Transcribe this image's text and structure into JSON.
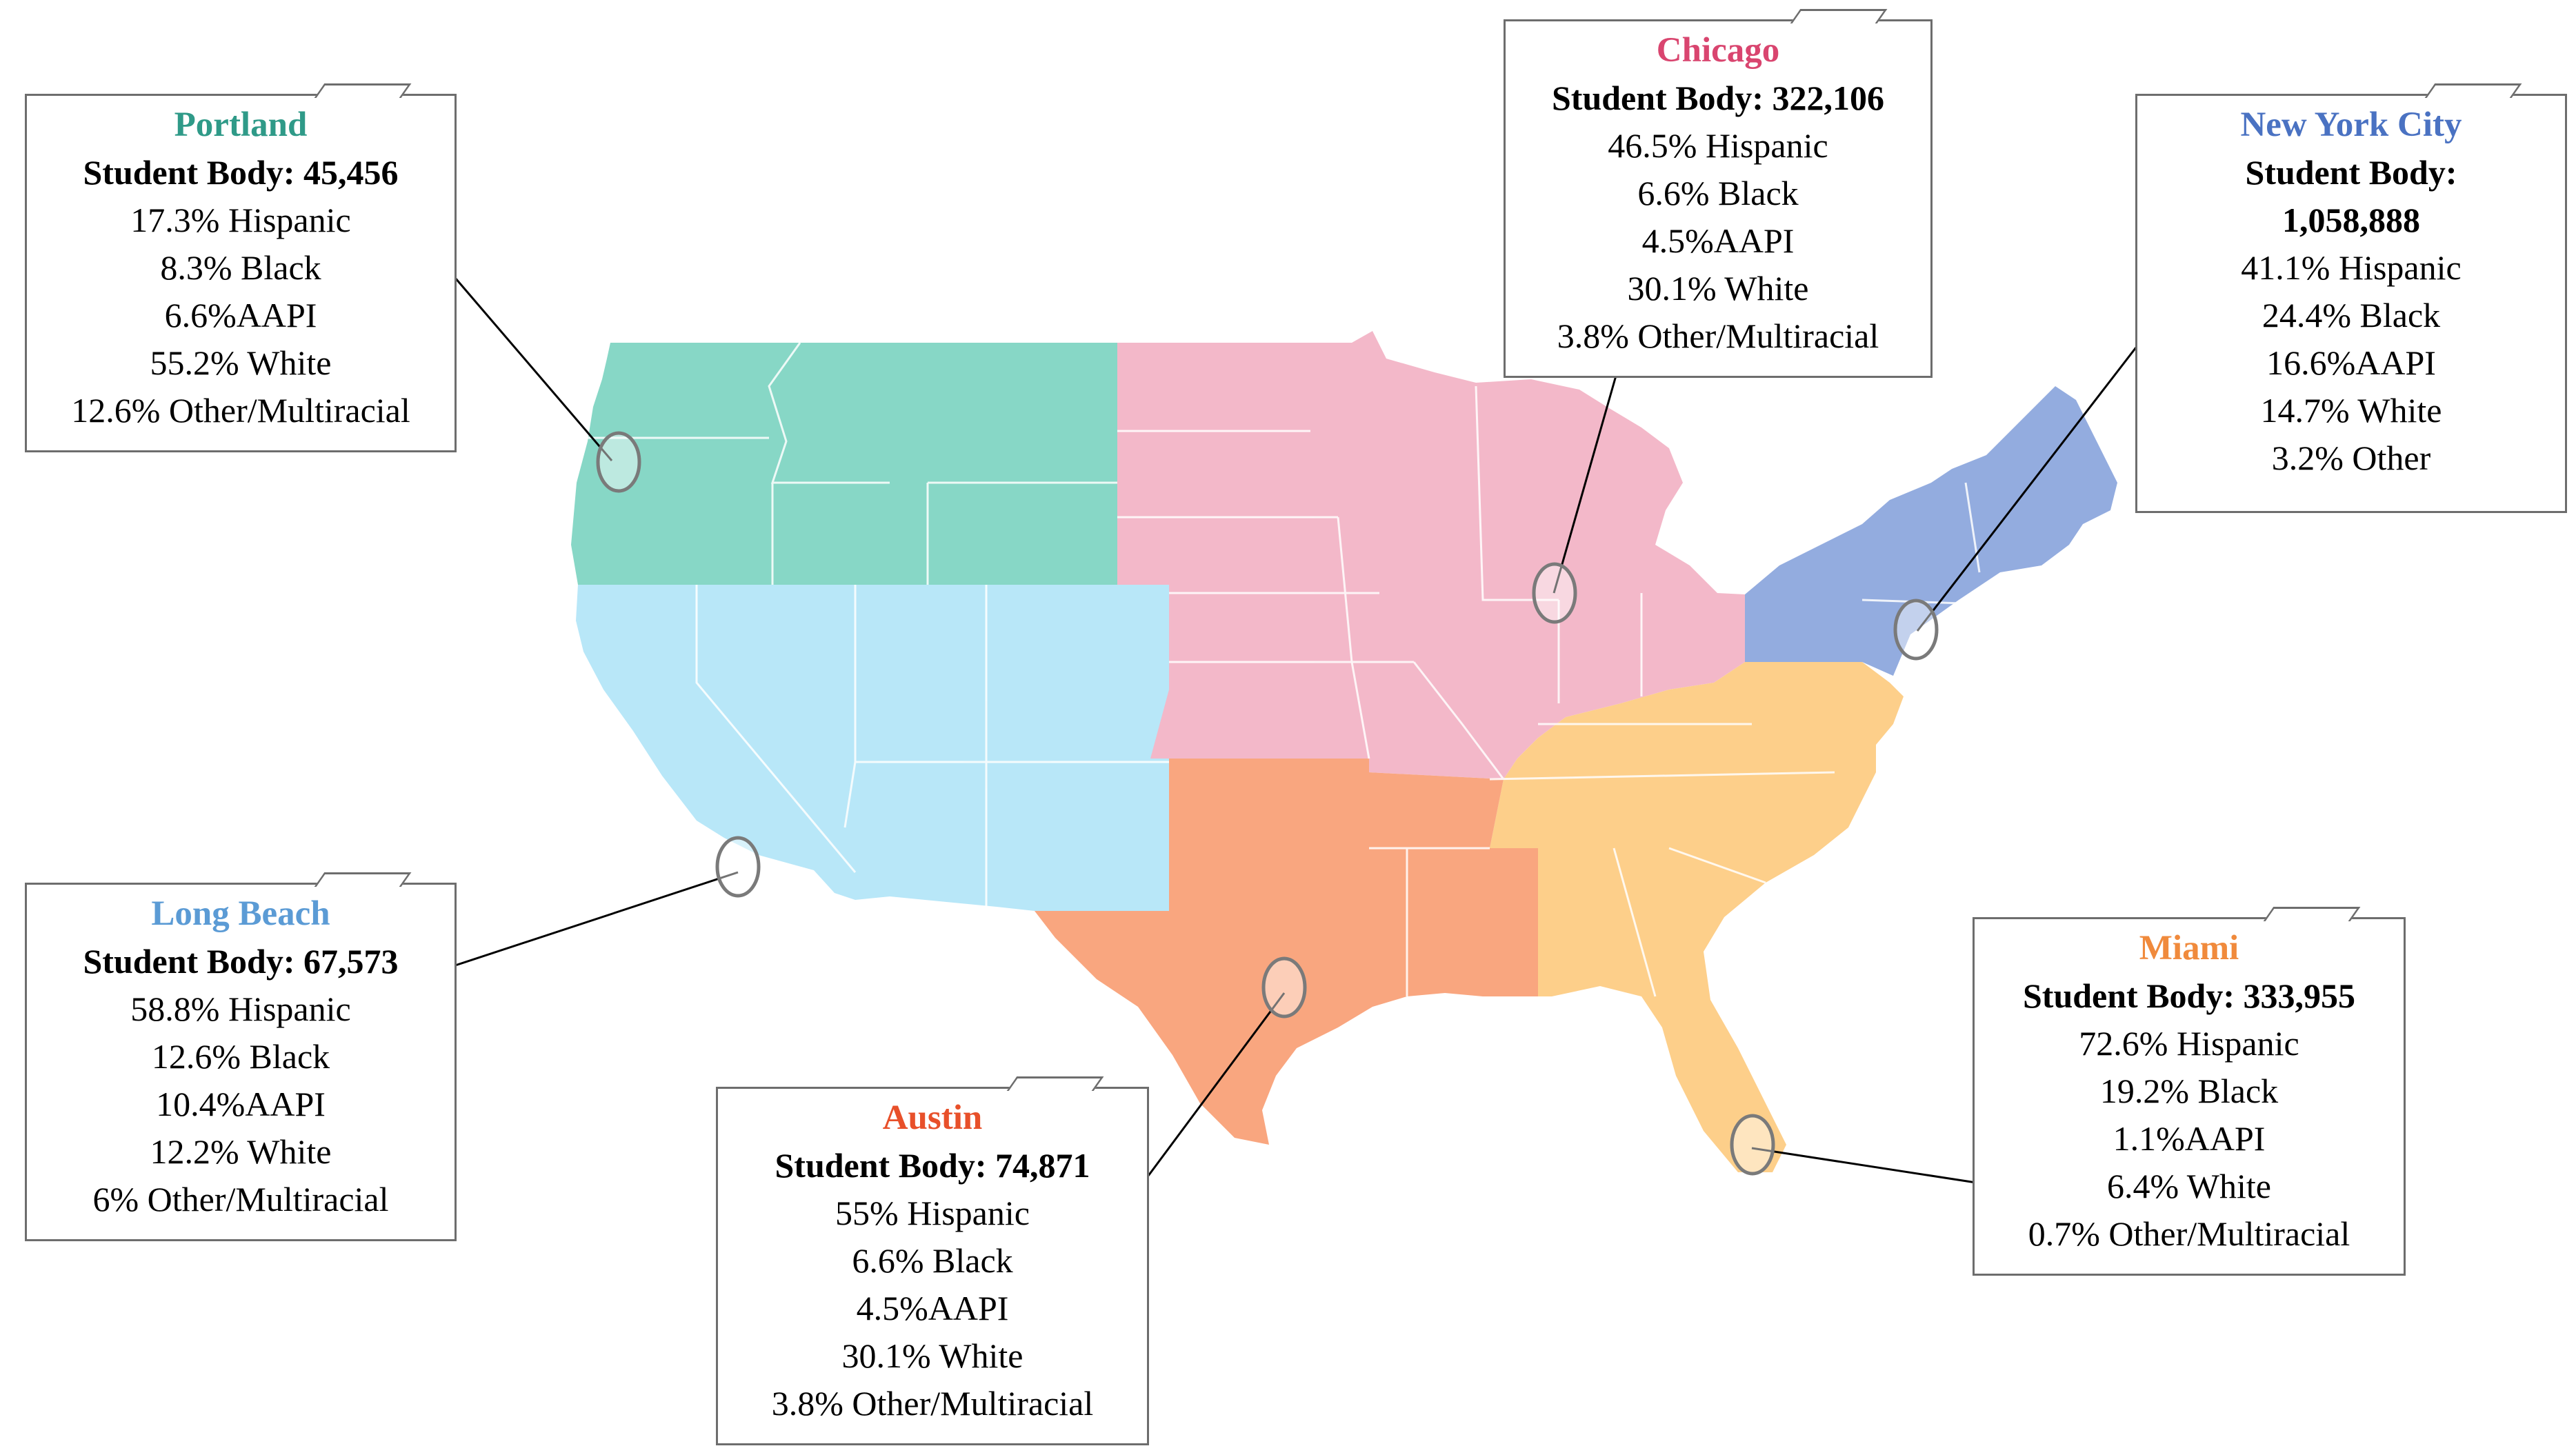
{
  "callouts": {
    "portland": {
      "city": "Portland",
      "city_color": "#2f9a88",
      "student_body": "Student Body: 45,456",
      "lines": [
        "17.3% Hispanic",
        "8.3% Black",
        "6.6%AAPI",
        "55.2% White",
        "12.6% Other/Multiracial"
      ]
    },
    "chicago": {
      "city": "Chicago",
      "city_color": "#d9456f",
      "student_body": "Student Body: 322,106",
      "lines": [
        "46.5% Hispanic",
        "6.6% Black",
        "4.5%AAPI",
        "30.1% White",
        "3.8% Other/Multiracial"
      ]
    },
    "nyc": {
      "city": "New York City",
      "city_color": "#4a72c2",
      "student_body_1": "Student Body:",
      "student_body_2": "1,058,888",
      "lines": [
        "41.1% Hispanic",
        "24.4% Black",
        "16.6%AAPI",
        "14.7% White",
        "3.2% Other"
      ]
    },
    "long_beach": {
      "city": "Long Beach",
      "city_color": "#5b9bd5",
      "student_body": "Student Body: 67,573",
      "lines": [
        "58.8% Hispanic",
        "12.6% Black",
        "10.4%AAPI",
        "12.2% White",
        "6% Other/Multiracial"
      ]
    },
    "austin": {
      "city": "Austin",
      "city_color": "#e8502a",
      "student_body": "Student Body: 74,871",
      "lines": [
        "55% Hispanic",
        "6.6% Black",
        "4.5%AAPI",
        "30.1% White",
        "3.8% Other/Multiracial"
      ]
    },
    "miami": {
      "city": "Miami",
      "city_color": "#f08a3c",
      "student_body": "Student Body: 333,955",
      "lines": [
        "72.6% Hispanic",
        "19.2% Black",
        "1.1%AAPI",
        "6.4% White",
        "0.7% Other/Multiracial"
      ]
    }
  },
  "regions": {
    "northwest": "#87d7c6",
    "southwest": "#b8e7f8",
    "midwest": "#f3b8c9",
    "northeast": "#93acdf",
    "southeast": "#fdcf8a",
    "south_central": "#f9a67f"
  }
}
